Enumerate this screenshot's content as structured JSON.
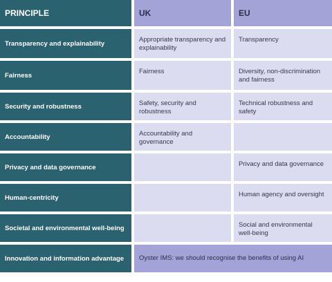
{
  "header": {
    "principle": "PRINCIPLE",
    "uk": "UK",
    "eu": "EU"
  },
  "rows": [
    {
      "principle": "Transparency and explainability",
      "uk": "Appropriate transparency and explainability",
      "eu": "Transparency"
    },
    {
      "principle": "Fairness",
      "uk": "Fairness",
      "eu": "Diversity, non-discrimination and fairness"
    },
    {
      "principle": "Security and robustness",
      "uk": "Safety, security and robustness",
      "eu": "Technical robustness and safety"
    },
    {
      "principle": "Accountability",
      "uk": "Accountability and governance",
      "eu": ""
    },
    {
      "principle": "Privacy and data governance",
      "uk": "",
      "eu": "Privacy and data governance"
    },
    {
      "principle": "Human-centricity",
      "uk": "",
      "eu": "Human agency and oversight"
    },
    {
      "principle": "Societal and environmental well-being",
      "uk": "",
      "eu": "Social and environmental well-being"
    },
    {
      "principle": "Innovation and information advantage",
      "combined": "Oyster IMS: we should recognise the benefits of using AI"
    }
  ],
  "colors": {
    "principle_bg": "#2a6270",
    "header_bg": "#a3a3d8",
    "cell_bg": "#dcdcf1"
  }
}
